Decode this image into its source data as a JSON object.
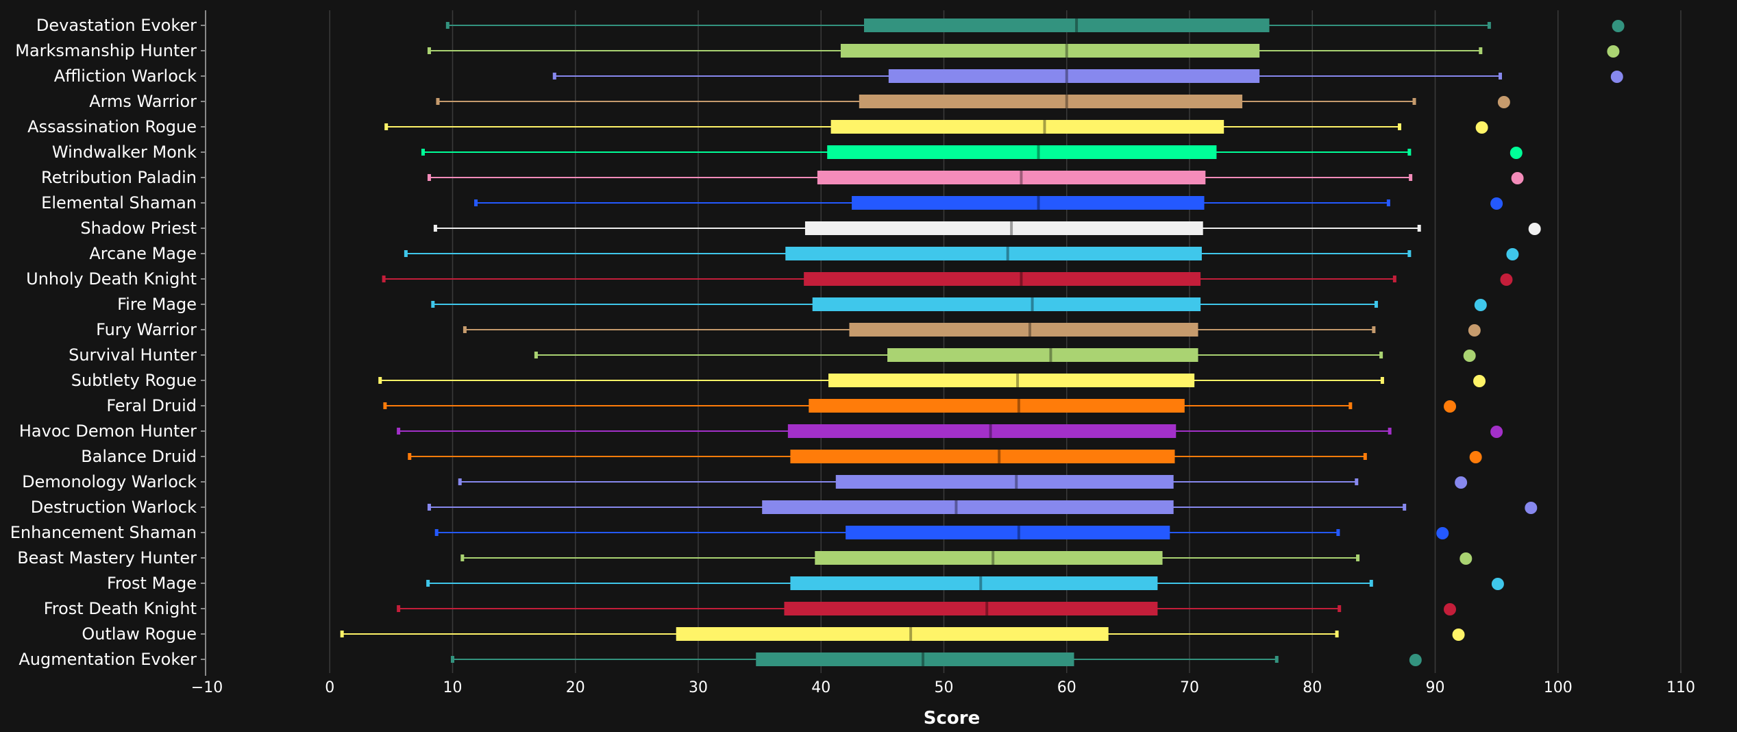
{
  "chart_data": {
    "type": "box",
    "xlabel": "Score",
    "xlim": [
      -10,
      110
    ],
    "x_ticks": [
      -10,
      0,
      10,
      20,
      30,
      40,
      50,
      60,
      70,
      80,
      90,
      100,
      110
    ],
    "grid": true,
    "colors": {
      "background": "#141414",
      "grid": "#3a3a3a",
      "text": "#ffffff",
      "evoker": "#33937f",
      "hunter": "#aad372",
      "warlock": "#8788ee",
      "warrior": "#c69b6d",
      "rogue": "#fff468",
      "monk": "#00ff98",
      "paladin": "#f48cba",
      "shaman": "#2459ff",
      "priest": "#f0f0f0",
      "mage": "#3fc7eb",
      "death_knight": "#c41e3a",
      "druid": "#ff7c0a",
      "demon_hunter": "#a330c9"
    },
    "series": [
      {
        "name": "Devastation Evoker",
        "class": "evoker",
        "min": 9.6,
        "q1": 43.5,
        "median": 60.8,
        "q3": 76.5,
        "max": 94.4,
        "top": 104.9
      },
      {
        "name": "Marksmanship Hunter",
        "class": "hunter",
        "min": 8.1,
        "q1": 41.6,
        "median": 60.0,
        "q3": 75.7,
        "max": 93.7,
        "top": 104.5
      },
      {
        "name": "Affliction Warlock",
        "class": "warlock",
        "min": 18.3,
        "q1": 45.5,
        "median": 60.0,
        "q3": 75.7,
        "max": 95.3,
        "top": 104.8
      },
      {
        "name": "Arms Warrior",
        "class": "warrior",
        "min": 8.8,
        "q1": 43.1,
        "median": 60.0,
        "q3": 74.3,
        "max": 88.3,
        "top": 95.6
      },
      {
        "name": "Assassination Rogue",
        "class": "rogue",
        "min": 4.6,
        "q1": 40.8,
        "median": 58.2,
        "q3": 72.8,
        "max": 87.1,
        "top": 93.8
      },
      {
        "name": "Windwalker Monk",
        "class": "monk",
        "min": 7.6,
        "q1": 40.5,
        "median": 57.7,
        "q3": 72.2,
        "max": 87.9,
        "top": 96.6
      },
      {
        "name": "Retribution Paladin",
        "class": "paladin",
        "min": 8.1,
        "q1": 39.7,
        "median": 56.3,
        "q3": 71.3,
        "max": 88.0,
        "top": 96.7
      },
      {
        "name": "Elemental Shaman",
        "class": "shaman",
        "min": 11.9,
        "q1": 42.5,
        "median": 57.7,
        "q3": 71.2,
        "max": 86.2,
        "top": 95.0
      },
      {
        "name": "Shadow Priest",
        "class": "priest",
        "min": 8.6,
        "q1": 38.7,
        "median": 55.5,
        "q3": 71.1,
        "max": 88.7,
        "top": 98.1
      },
      {
        "name": "Arcane Mage",
        "class": "mage",
        "min": 6.2,
        "q1": 37.1,
        "median": 55.2,
        "q3": 71.0,
        "max": 87.9,
        "top": 96.3
      },
      {
        "name": "Unholy Death Knight",
        "class": "death_knight",
        "min": 4.4,
        "q1": 38.6,
        "median": 56.3,
        "q3": 70.9,
        "max": 86.7,
        "top": 95.8
      },
      {
        "name": "Fire Mage",
        "class": "mage",
        "min": 8.4,
        "q1": 39.3,
        "median": 57.2,
        "q3": 70.9,
        "max": 85.2,
        "top": 93.7
      },
      {
        "name": "Fury Warrior",
        "class": "warrior",
        "min": 11.0,
        "q1": 42.3,
        "median": 57.0,
        "q3": 70.7,
        "max": 85.0,
        "top": 93.2
      },
      {
        "name": "Survival Hunter",
        "class": "hunter",
        "min": 16.8,
        "q1": 45.4,
        "median": 58.7,
        "q3": 70.7,
        "max": 85.6,
        "top": 92.8
      },
      {
        "name": "Subtlety Rogue",
        "class": "rogue",
        "min": 4.1,
        "q1": 40.6,
        "median": 56.0,
        "q3": 70.4,
        "max": 85.7,
        "top": 93.6
      },
      {
        "name": "Feral Druid",
        "class": "druid",
        "min": 4.5,
        "q1": 39.0,
        "median": 56.1,
        "q3": 69.6,
        "max": 83.1,
        "top": 91.2
      },
      {
        "name": "Havoc Demon Hunter",
        "class": "demon_hunter",
        "min": 5.6,
        "q1": 37.3,
        "median": 53.8,
        "q3": 68.9,
        "max": 86.3,
        "top": 95.0
      },
      {
        "name": "Balance Druid",
        "class": "druid",
        "min": 6.5,
        "q1": 37.5,
        "median": 54.5,
        "q3": 68.8,
        "max": 84.3,
        "top": 93.3
      },
      {
        "name": "Demonology Warlock",
        "class": "warlock",
        "min": 10.6,
        "q1": 41.2,
        "median": 55.9,
        "q3": 68.7,
        "max": 83.6,
        "top": 92.1
      },
      {
        "name": "Destruction Warlock",
        "class": "warlock",
        "min": 8.1,
        "q1": 35.2,
        "median": 51.0,
        "q3": 68.7,
        "max": 87.5,
        "top": 97.8
      },
      {
        "name": "Enhancement Shaman",
        "class": "shaman",
        "min": 8.7,
        "q1": 42.0,
        "median": 56.1,
        "q3": 68.4,
        "max": 82.1,
        "top": 90.6
      },
      {
        "name": "Beast Mastery Hunter",
        "class": "hunter",
        "min": 10.8,
        "q1": 39.5,
        "median": 54.0,
        "q3": 67.8,
        "max": 83.7,
        "top": 92.5
      },
      {
        "name": "Frost Mage",
        "class": "mage",
        "min": 8.0,
        "q1": 37.5,
        "median": 53.0,
        "q3": 67.4,
        "max": 84.8,
        "top": 95.1
      },
      {
        "name": "Frost Death Knight",
        "class": "death_knight",
        "min": 5.6,
        "q1": 37.0,
        "median": 53.5,
        "q3": 67.4,
        "max": 82.2,
        "top": 91.2
      },
      {
        "name": "Outlaw Rogue",
        "class": "rogue",
        "min": 1.0,
        "q1": 28.2,
        "median": 47.3,
        "q3": 63.4,
        "max": 82.0,
        "top": 91.9
      },
      {
        "name": "Augmentation Evoker",
        "class": "evoker",
        "min": 10.0,
        "q1": 34.7,
        "median": 48.3,
        "q3": 60.6,
        "max": 77.1,
        "top": 88.4
      }
    ]
  }
}
